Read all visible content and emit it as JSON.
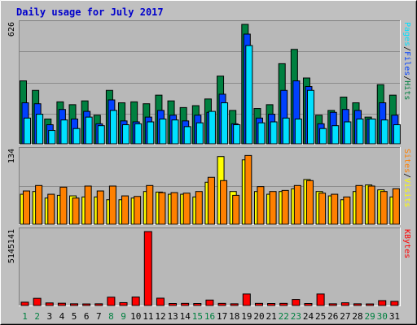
{
  "page_title": "Daily usage for July 2017",
  "colors": {
    "background": "#c0c0c0",
    "panel": "#b8b8b8",
    "grid": "#a8a8a8",
    "hits": "#008040",
    "files": "#0040ff",
    "pages": "#00e0ff",
    "visits": "#ffff00",
    "sites": "#ff8000",
    "kbytes": "#ff0000",
    "weekday_label": "#000000",
    "weekend_label": "#008040",
    "title": "#0000cc"
  },
  "chart_data": [
    {
      "type": "bar",
      "name": "hits-files-pages",
      "ylim": [
        0,
        626
      ],
      "y_tick_label": "626",
      "legend_text": [
        "Pages",
        "/",
        "Files",
        "/",
        "Hits"
      ],
      "categories": [
        "1",
        "2",
        "3",
        "4",
        "5",
        "6",
        "7",
        "8",
        "9",
        "10",
        "11",
        "12",
        "13",
        "14",
        "15",
        "16",
        "17",
        "18",
        "19",
        "20",
        "21",
        "22",
        "23",
        "24",
        "25",
        "26",
        "27",
        "28",
        "29",
        "30",
        "31"
      ],
      "series": [
        {
          "name": "Hits",
          "values": [
            330,
            280,
            130,
            220,
            205,
            225,
            150,
            280,
            215,
            220,
            210,
            255,
            225,
            190,
            200,
            235,
            355,
            175,
            626,
            185,
            205,
            420,
            495,
            345,
            150,
            175,
            245,
            215,
            140,
            310,
            255
          ]
        },
        {
          "name": "Files",
          "values": [
            215,
            210,
            100,
            180,
            130,
            170,
            105,
            230,
            120,
            115,
            140,
            175,
            150,
            120,
            150,
            165,
            260,
            105,
            575,
            135,
            155,
            280,
            330,
            300,
            105,
            165,
            180,
            175,
            130,
            215,
            150
          ]
        },
        {
          "name": "Pages",
          "values": [
            135,
            155,
            70,
            125,
            80,
            140,
            95,
            175,
            100,
            105,
            115,
            130,
            125,
            90,
            110,
            170,
            215,
            100,
            515,
            110,
            115,
            135,
            130,
            280,
            80,
            95,
            115,
            130,
            130,
            125,
            100
          ]
        }
      ]
    },
    {
      "type": "bar",
      "name": "visits-sites",
      "ylim": [
        0,
        134
      ],
      "y_tick_label": "134",
      "legend_text": [
        "Sites",
        "/",
        "Visits"
      ],
      "categories": [
        "1",
        "2",
        "3",
        "4",
        "5",
        "6",
        "7",
        "8",
        "9",
        "10",
        "11",
        "12",
        "13",
        "14",
        "15",
        "16",
        "17",
        "18",
        "19",
        "20",
        "21",
        "22",
        "23",
        "24",
        "25",
        "26",
        "27",
        "28",
        "29",
        "30",
        "31"
      ],
      "series": [
        {
          "name": "Visits",
          "values": [
            55,
            60,
            48,
            53,
            52,
            50,
            50,
            45,
            45,
            48,
            60,
            59,
            55,
            55,
            50,
            77,
            124,
            60,
            118,
            60,
            55,
            60,
            65,
            82,
            60,
            52,
            45,
            60,
            72,
            63,
            50
          ]
        },
        {
          "name": "Sites",
          "values": [
            61,
            71,
            55,
            68,
            48,
            70,
            61,
            70,
            52,
            51,
            71,
            58,
            58,
            57,
            60,
            86,
            80,
            53,
            126,
            69,
            60,
            62,
            71,
            80,
            57,
            55,
            50,
            71,
            70,
            60,
            65
          ]
        }
      ]
    },
    {
      "type": "bar",
      "name": "kbytes",
      "ylim": [
        0,
        5145141
      ],
      "y_tick_label": "5145141",
      "legend_text": [
        "KBytes"
      ],
      "categories": [
        "1",
        "2",
        "3",
        "4",
        "5",
        "6",
        "7",
        "8",
        "9",
        "10",
        "11",
        "12",
        "13",
        "14",
        "15",
        "16",
        "17",
        "18",
        "19",
        "20",
        "21",
        "22",
        "23",
        "24",
        "25",
        "26",
        "27",
        "28",
        "29",
        "30",
        "31"
      ],
      "series": [
        {
          "name": "KBytes",
          "values": [
            230000,
            500000,
            180000,
            160000,
            120000,
            110000,
            120000,
            580000,
            200000,
            590000,
            5145141,
            510000,
            140000,
            150000,
            140000,
            380000,
            150000,
            120000,
            800000,
            150000,
            140000,
            150000,
            420000,
            140000,
            800000,
            120000,
            190000,
            120000,
            110000,
            340000,
            290000
          ]
        }
      ]
    }
  ],
  "x_axis": {
    "labels": [
      "1",
      "2",
      "3",
      "4",
      "5",
      "6",
      "7",
      "8",
      "9",
      "10",
      "11",
      "12",
      "13",
      "14",
      "15",
      "16",
      "17",
      "18",
      "19",
      "20",
      "21",
      "22",
      "23",
      "24",
      "25",
      "26",
      "27",
      "28",
      "29",
      "30",
      "31"
    ],
    "weekend_days": [
      "1",
      "2",
      "8",
      "9",
      "15",
      "16",
      "22",
      "23",
      "29",
      "30"
    ]
  }
}
